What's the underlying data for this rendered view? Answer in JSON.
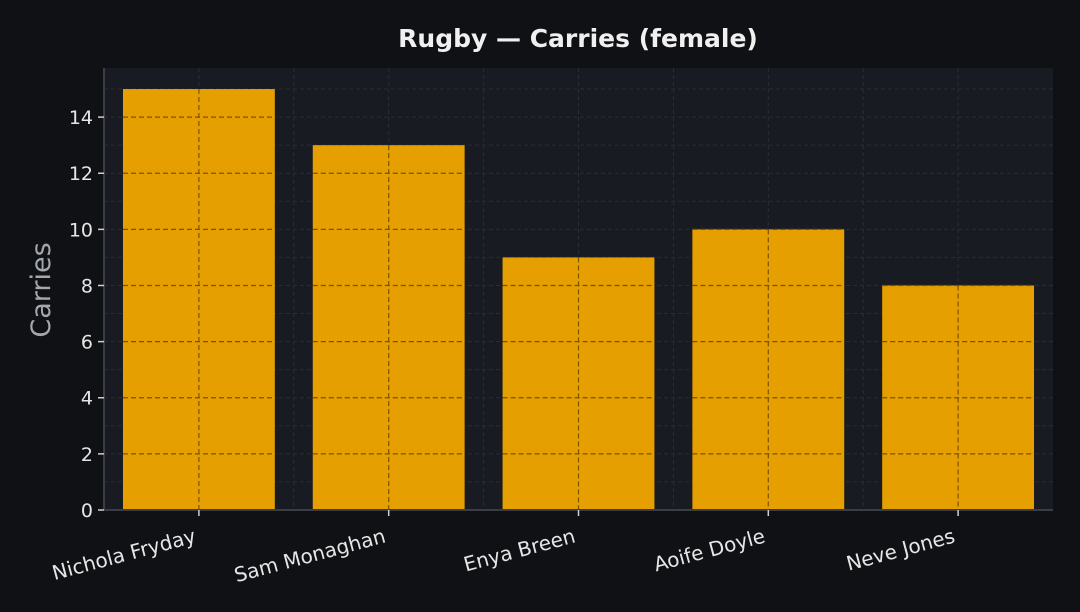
{
  "chart_data": {
    "type": "bar",
    "title": "Rugby — Carries (female)",
    "xlabel": "",
    "ylabel": "Carries",
    "categories": [
      "Nichola Fryday",
      "Sam Monaghan",
      "Enya Breen",
      "Aoife Doyle",
      "Neve Jones"
    ],
    "values": [
      15,
      13,
      9,
      10,
      8
    ],
    "ylim": [
      0,
      15.75
    ],
    "yticks": [
      0,
      2,
      4,
      6,
      8,
      10,
      12,
      14
    ],
    "grid": true,
    "legend": "none",
    "colors": {
      "bar": "#e59f00",
      "background": "#101114",
      "plot_background": "#191b22",
      "grid": "#2a2d36"
    }
  }
}
